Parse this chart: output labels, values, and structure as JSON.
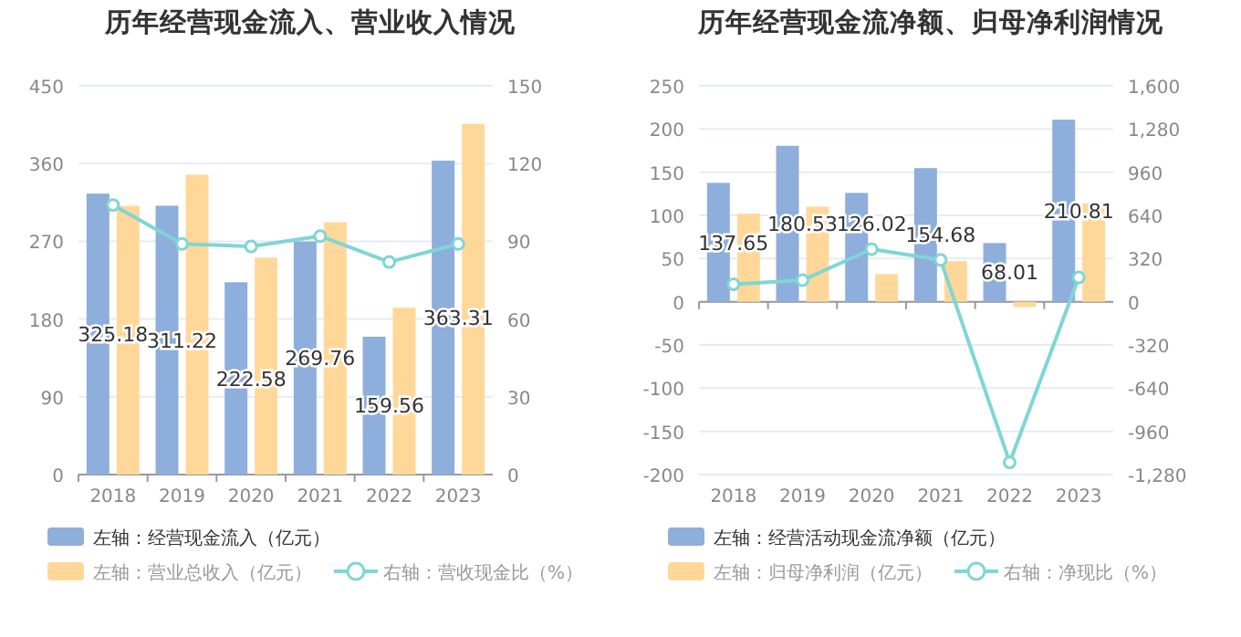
{
  "chart_data": [
    {
      "type": "bar",
      "title": "历年经营现金流入、营业收入情况",
      "categories": [
        "2018",
        "2019",
        "2020",
        "2021",
        "2022",
        "2023"
      ],
      "series": [
        {
          "name": "左轴：经营现金流入（亿元）",
          "color": "#8eaedb",
          "values": [
            325.18,
            311.22,
            222.58,
            269.76,
            159.56,
            363.31
          ],
          "value_labels": [
            "325.18",
            "311.22",
            "222.58",
            "269.76",
            "159.56",
            "363.31"
          ]
        },
        {
          "name": "左轴：营业总收入（亿元）",
          "color": "#ffd899",
          "values": [
            311,
            347,
            251,
            292,
            193,
            406
          ]
        },
        {
          "name": "右轴：营收现金比（%）",
          "type": "line",
          "axis": "y2",
          "color": "#7fd6d6",
          "marker": "circle",
          "values": [
            104,
            89,
            88,
            92,
            82,
            89
          ]
        }
      ],
      "ylim": [
        0,
        450
      ],
      "yticks": [
        0,
        90,
        180,
        270,
        360,
        450
      ],
      "y2lim": [
        0,
        150
      ],
      "y2ticks": [
        0,
        30,
        60,
        90,
        120,
        150
      ],
      "grid": "y",
      "legend": "bottom"
    },
    {
      "type": "bar",
      "title": "历年经营现金流净额、归母净利润情况",
      "categories": [
        "2018",
        "2019",
        "2020",
        "2021",
        "2022",
        "2023"
      ],
      "series": [
        {
          "name": "左轴：经营活动现金流净额（亿元）",
          "color": "#8eaedb",
          "values": [
            137.65,
            180.53,
            126.02,
            154.68,
            68.01,
            210.81
          ],
          "value_labels": [
            "137.65",
            "180.53",
            "126.02",
            "154.68",
            "68.01",
            "210.81"
          ]
        },
        {
          "name": "左轴：归母净利润（亿元）",
          "color": "#ffd899",
          "values": [
            102,
            110,
            32,
            47,
            -6,
            114
          ]
        },
        {
          "name": "右轴：净现比（%）",
          "type": "line",
          "axis": "y2",
          "color": "#7fd6d6",
          "marker": "circle",
          "values": [
            130,
            160,
            390,
            310,
            -1190,
            180
          ]
        }
      ],
      "ylim": [
        -200,
        250
      ],
      "yticks": [
        -200,
        -150,
        -100,
        -50,
        0,
        50,
        100,
        150,
        200,
        250
      ],
      "y2lim": [
        -1280,
        1600
      ],
      "y2ticks": [
        {
          "value": -1280,
          "label": "-1,280"
        },
        -960,
        -640,
        -320,
        0,
        320,
        640,
        960,
        {
          "value": 1280,
          "label": "1,280"
        },
        {
          "value": 1600,
          "label": "1,600"
        }
      ],
      "grid": "y",
      "legend": "bottom"
    }
  ]
}
